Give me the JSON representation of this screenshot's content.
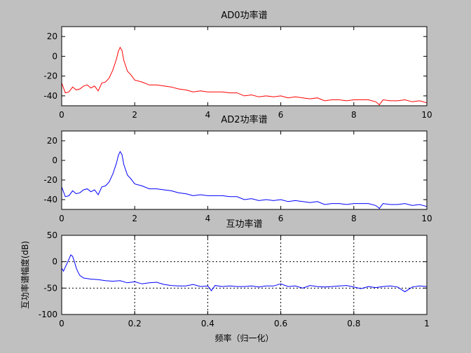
{
  "figure": {
    "background": "#c0c0c0",
    "axes_background": "#ffffff"
  },
  "chart_data": [
    {
      "type": "line",
      "title": "AD0功率谱",
      "xlabel": "",
      "ylabel": "",
      "xlim": [
        0,
        10
      ],
      "ylim": [
        -50,
        30
      ],
      "xticks": [
        0,
        2,
        4,
        6,
        8,
        10
      ],
      "yticks": [
        -40,
        -20,
        0,
        20
      ],
      "grid": false,
      "series": [
        {
          "color": "#ff0000",
          "x": [
            0,
            0.1,
            0.2,
            0.3,
            0.4,
            0.5,
            0.6,
            0.7,
            0.8,
            0.9,
            1.0,
            1.1,
            1.2,
            1.3,
            1.4,
            1.5,
            1.55,
            1.6,
            1.65,
            1.7,
            1.8,
            1.9,
            2.0,
            2.2,
            2.4,
            2.6,
            2.8,
            3.0,
            3.2,
            3.4,
            3.6,
            3.8,
            4.0,
            4.2,
            4.4,
            4.6,
            4.8,
            5.0,
            5.2,
            5.4,
            5.6,
            5.8,
            6.0,
            6.2,
            6.4,
            6.6,
            6.8,
            7.0,
            7.2,
            7.4,
            7.6,
            7.8,
            8.0,
            8.2,
            8.4,
            8.6,
            8.7,
            8.8,
            9.0,
            9.2,
            9.4,
            9.6,
            9.8,
            10.0
          ],
          "y": [
            -27,
            -37,
            -36,
            -31,
            -34,
            -33,
            -30,
            -29,
            -32,
            -30,
            -35,
            -27,
            -26,
            -22,
            -14,
            -3,
            5,
            9,
            6,
            -4,
            -15,
            -19,
            -24,
            -26,
            -29,
            -29,
            -30,
            -31,
            -33,
            -34,
            -36,
            -35,
            -36,
            -36,
            -36,
            -37,
            -37,
            -40,
            -39,
            -41,
            -40,
            -41,
            -40,
            -42,
            -41,
            -42,
            -43,
            -42,
            -45,
            -44,
            -44,
            -45,
            -44,
            -44,
            -44,
            -46,
            -49,
            -44,
            -45,
            -45,
            -44,
            -46,
            -45,
            -47
          ]
        }
      ]
    },
    {
      "type": "line",
      "title": "AD2功率谱",
      "xlabel": "",
      "ylabel": "",
      "xlim": [
        0,
        10
      ],
      "ylim": [
        -50,
        30
      ],
      "xticks": [
        0,
        2,
        4,
        6,
        8,
        10
      ],
      "yticks": [
        -40,
        -20,
        0,
        20
      ],
      "grid": false,
      "series": [
        {
          "color": "#0000ff",
          "x": [
            0,
            0.1,
            0.2,
            0.3,
            0.4,
            0.5,
            0.6,
            0.7,
            0.8,
            0.9,
            1.0,
            1.1,
            1.2,
            1.3,
            1.4,
            1.5,
            1.55,
            1.6,
            1.65,
            1.7,
            1.8,
            1.9,
            2.0,
            2.2,
            2.4,
            2.6,
            2.8,
            3.0,
            3.2,
            3.4,
            3.6,
            3.8,
            4.0,
            4.2,
            4.4,
            4.6,
            4.8,
            5.0,
            5.2,
            5.4,
            5.6,
            5.8,
            6.0,
            6.2,
            6.4,
            6.6,
            6.8,
            7.0,
            7.2,
            7.4,
            7.6,
            7.8,
            8.0,
            8.2,
            8.4,
            8.6,
            8.7,
            8.8,
            9.0,
            9.2,
            9.4,
            9.6,
            9.8,
            10.0
          ],
          "y": [
            -27,
            -37,
            -36,
            -31,
            -34,
            -33,
            -30,
            -29,
            -32,
            -30,
            -35,
            -27,
            -26,
            -22,
            -14,
            -3,
            5,
            9,
            6,
            -4,
            -15,
            -19,
            -24,
            -26,
            -29,
            -29,
            -30,
            -31,
            -33,
            -34,
            -36,
            -35,
            -36,
            -36,
            -36,
            -37,
            -37,
            -40,
            -39,
            -41,
            -40,
            -41,
            -40,
            -42,
            -41,
            -42,
            -43,
            -42,
            -45,
            -44,
            -44,
            -45,
            -44,
            -44,
            -44,
            -46,
            -49,
            -44,
            -45,
            -45,
            -44,
            -46,
            -45,
            -47
          ]
        }
      ]
    },
    {
      "type": "line",
      "title": "互功率谱",
      "xlabel": "频率（归一化）",
      "ylabel": "互功率谱幅度(dB)",
      "xlim": [
        0,
        1
      ],
      "ylim": [
        -100,
        50
      ],
      "xticks": [
        0,
        0.2,
        0.4,
        0.6,
        0.8,
        1
      ],
      "yticks": [
        -100,
        -50,
        0,
        50
      ],
      "grid": true,
      "grid_style": "dotted",
      "series": [
        {
          "color": "#0000ff",
          "x": [
            0,
            0.005,
            0.01,
            0.015,
            0.02,
            0.025,
            0.03,
            0.035,
            0.04,
            0.045,
            0.05,
            0.06,
            0.08,
            0.1,
            0.12,
            0.14,
            0.16,
            0.18,
            0.2,
            0.22,
            0.24,
            0.26,
            0.28,
            0.3,
            0.32,
            0.34,
            0.36,
            0.38,
            0.4,
            0.41,
            0.42,
            0.44,
            0.46,
            0.48,
            0.5,
            0.52,
            0.54,
            0.56,
            0.58,
            0.6,
            0.62,
            0.64,
            0.66,
            0.68,
            0.7,
            0.72,
            0.74,
            0.76,
            0.78,
            0.8,
            0.82,
            0.84,
            0.86,
            0.88,
            0.9,
            0.92,
            0.94,
            0.96,
            0.98,
            1.0
          ],
          "y": [
            -12,
            -18,
            -10,
            -3,
            5,
            13,
            10,
            0,
            -12,
            -20,
            -26,
            -31,
            -33,
            -34,
            -36,
            -37,
            -36,
            -40,
            -38,
            -42,
            -40,
            -39,
            -43,
            -45,
            -46,
            -46,
            -43,
            -47,
            -46,
            -55,
            -45,
            -47,
            -46,
            -47,
            -47,
            -46,
            -48,
            -46,
            -46,
            -42,
            -47,
            -46,
            -50,
            -45,
            -47,
            -48,
            -47,
            -46,
            -45,
            -48,
            -51,
            -47,
            -49,
            -47,
            -46,
            -48,
            -57,
            -48,
            -46,
            -47
          ]
        }
      ]
    }
  ]
}
